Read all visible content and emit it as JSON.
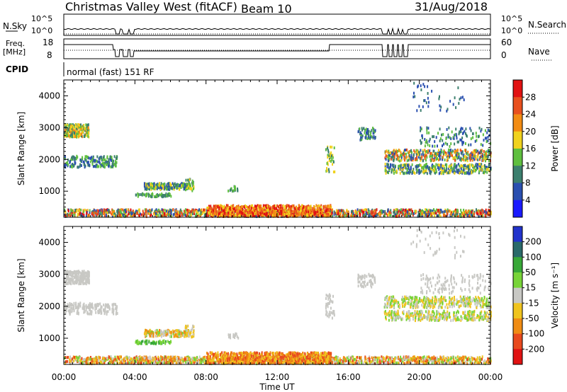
{
  "header": {
    "station_title": "Christmas Valley West (fitACF)",
    "beam_label": "Beam 10",
    "date": "31/Aug/2018"
  },
  "strip_labels": {
    "nsky": "N.Sky",
    "nsky_ticks": [
      "10^5",
      "10^0"
    ],
    "nsearch": "N.Search",
    "freq_line1": "Freq.",
    "freq_line2": "[MHz]",
    "freq_ticks": [
      "18",
      "8"
    ],
    "nave_ticks": [
      "60",
      "0"
    ],
    "nave": "Nave",
    "cpid": "CPID",
    "mode_text": "normal (fast) 151 RF"
  },
  "chart_data": [
    {
      "type": "heatmap",
      "panel": "power",
      "ylabel": "Slant Range [km]",
      "yticks": [
        "1000",
        "2000",
        "3000",
        "4000"
      ],
      "ylim": [
        180,
        4500
      ],
      "colorbar_label": "Power [dB]",
      "colorbar_ticks": [
        "4",
        "8",
        "12",
        "16",
        "20",
        "24",
        "28"
      ],
      "colorbar_range": [
        0,
        30
      ],
      "colors": [
        "#1a1aff",
        "#2a4fb0",
        "#3c7f6e",
        "#5fbf3f",
        "#f0d21e",
        "#f28c14",
        "#e8501e",
        "#e11212"
      ]
    },
    {
      "type": "heatmap",
      "panel": "velocity",
      "ylabel": "Slant Range [km]",
      "yticks": [
        "1000",
        "2000",
        "3000",
        "4000"
      ],
      "ylim": [
        180,
        4500
      ],
      "xlabel": "Time UT",
      "xticks": [
        "00:00",
        "04:00",
        "08:00",
        "12:00",
        "16:00",
        "20:00",
        "00:00"
      ],
      "colorbar_label": "Velocity [m s⁻¹]",
      "colorbar_ticks": [
        "200",
        "100",
        "50",
        "15",
        "-15",
        "-50",
        "-100",
        "-200"
      ],
      "colors": [
        "#2233cc",
        "#2a6a6a",
        "#38a838",
        "#78d438",
        "#c8c8c4",
        "#f0c41e",
        "#f08c14",
        "#e84a1e",
        "#e01212"
      ]
    }
  ]
}
